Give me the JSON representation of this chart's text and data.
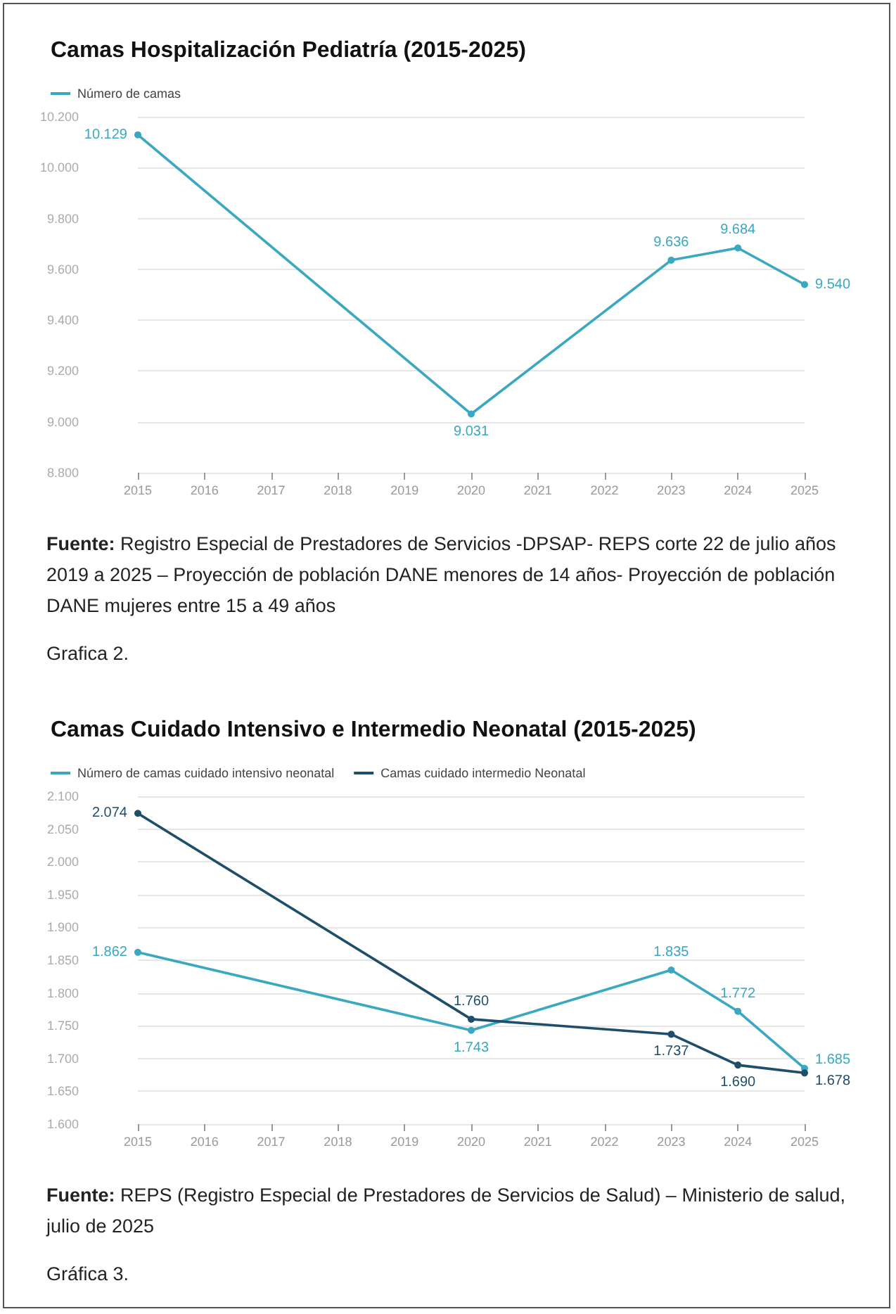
{
  "chart_data": [
    {
      "type": "line",
      "title": "Camas Hospitalización Pediatría (2015-2025)",
      "series": [
        {
          "name": "Número de camas",
          "color": "#3aa8c1",
          "x": [
            2015,
            2020,
            2023,
            2024,
            2025
          ],
          "values": [
            10129,
            9031,
            9636,
            9684,
            9540
          ],
          "value_labels": [
            "10.129",
            "9.031",
            "9.636",
            "9.684",
            "9.540"
          ]
        }
      ],
      "xlim": [
        2015,
        2025
      ],
      "xticks": [
        2015,
        2016,
        2017,
        2018,
        2019,
        2020,
        2021,
        2022,
        2023,
        2024,
        2025
      ],
      "ylim": [
        8800,
        10200
      ],
      "yticks": [
        {
          "value": 8800,
          "label": "8.800"
        },
        {
          "value": 9000,
          "label": "9.000"
        },
        {
          "value": 9200,
          "label": "9.200"
        },
        {
          "value": 9400,
          "label": "9.400"
        },
        {
          "value": 9600,
          "label": "9.600"
        },
        {
          "value": 9800,
          "label": "9.800"
        },
        {
          "value": 10000,
          "label": "10.000"
        },
        {
          "value": 10200,
          "label": "10.200"
        }
      ],
      "grid": "y",
      "legend": "top left",
      "marker": "circle",
      "line_style": "solid",
      "annotations": [
        "Fuente: Registro Especial de Prestadores de Servicios -DPSAP- REPS corte 22 de julio años 2019 a 2025 – Proyección de población DANE menores de 14 años- Proyección de población DANE mujeres entre 15 a 49 años",
        "Grafica 2."
      ]
    },
    {
      "type": "line",
      "title": "Camas Cuidado Intensivo e Intermedio Neonatal (2015-2025)",
      "series": [
        {
          "name": "Número de camas cuidado intensivo neonatal",
          "color": "#3aa8c1",
          "x": [
            2015,
            2020,
            2023,
            2024,
            2025
          ],
          "values": [
            1862,
            1743,
            1835,
            1772,
            1685
          ],
          "value_labels": [
            "1.862",
            "1.743",
            "1.835",
            "1.772",
            "1.685"
          ]
        },
        {
          "name": "Camas cuidado intermedio Neonatal",
          "color": "#1f4e6b",
          "x": [
            2015,
            2020,
            2023,
            2024,
            2025
          ],
          "values": [
            2074,
            1760,
            1737,
            1690,
            1678
          ],
          "value_labels": [
            "2.074",
            "1.760",
            "1.737",
            "1.690",
            "1.678"
          ]
        }
      ],
      "xlim": [
        2015,
        2025
      ],
      "xticks": [
        2015,
        2016,
        2017,
        2018,
        2019,
        2020,
        2021,
        2022,
        2023,
        2024,
        2025
      ],
      "ylim": [
        1600,
        2100
      ],
      "yticks": [
        {
          "value": 1600,
          "label": "1.600"
        },
        {
          "value": 1650,
          "label": "1.650"
        },
        {
          "value": 1700,
          "label": "1.700"
        },
        {
          "value": 1750,
          "label": "1.750"
        },
        {
          "value": 1800,
          "label": "1.800"
        },
        {
          "value": 1850,
          "label": "1.850"
        },
        {
          "value": 1900,
          "label": "1.900"
        },
        {
          "value": 1950,
          "label": "1.950"
        },
        {
          "value": 2000,
          "label": "2.000"
        },
        {
          "value": 2050,
          "label": "2.050"
        },
        {
          "value": 2100,
          "label": "2.100"
        }
      ],
      "grid": "y",
      "legend": "top left",
      "marker": "circle",
      "line_style": "solid",
      "annotations": [
        "Fuente: REPS (Registro Especial de Prestadores de Servicios de Salud) – Ministerio de salud, julio de 2025",
        "Gráfica 3."
      ]
    }
  ]
}
